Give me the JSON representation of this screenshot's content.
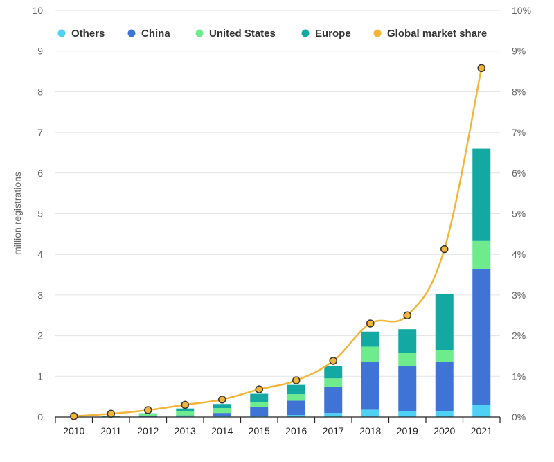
{
  "chart_data": {
    "type": "bar",
    "stacked": true,
    "categories": [
      "2010",
      "2011",
      "2012",
      "2013",
      "2014",
      "2015",
      "2016",
      "2017",
      "2018",
      "2019",
      "2020",
      "2021"
    ],
    "series": [
      {
        "name": "Others",
        "color": "#4fd1f5",
        "values": [
          0,
          0,
          0.01,
          0.02,
          0.03,
          0.03,
          0.05,
          0.1,
          0.18,
          0.15,
          0.15,
          0.3
        ]
      },
      {
        "name": "China",
        "color": "#3f74d6",
        "values": [
          0,
          0,
          0.01,
          0.02,
          0.07,
          0.22,
          0.35,
          0.65,
          1.18,
          1.1,
          1.2,
          3.33
        ]
      },
      {
        "name": "United States",
        "color": "#6eeb8c",
        "values": [
          0,
          0.01,
          0.05,
          0.1,
          0.12,
          0.12,
          0.16,
          0.2,
          0.37,
          0.33,
          0.3,
          0.7
        ]
      },
      {
        "name": "Europe",
        "color": "#13a9a2",
        "values": [
          0,
          0.01,
          0.02,
          0.07,
          0.1,
          0.2,
          0.23,
          0.31,
          0.37,
          0.58,
          1.38,
          2.27
        ]
      }
    ],
    "line_series": {
      "name": "Global market share",
      "color": "#f3b538",
      "values": [
        0.02,
        0.08,
        0.17,
        0.3,
        0.43,
        0.68,
        0.9,
        1.38,
        2.3,
        2.5,
        4.13,
        8.58
      ],
      "unit": "%"
    },
    "ylabel": "million registrations",
    "ylim": [
      0,
      10
    ],
    "y2lim": [
      0,
      10
    ],
    "yticks": [
      "0",
      "1",
      "2",
      "3",
      "4",
      "5",
      "6",
      "7",
      "8",
      "9",
      "10"
    ],
    "y2ticks": [
      "0%",
      "1%",
      "2%",
      "3%",
      "4%",
      "5%",
      "6%",
      "7%",
      "8%",
      "9%",
      "10%"
    ],
    "grid": true,
    "legend_position": "top"
  }
}
